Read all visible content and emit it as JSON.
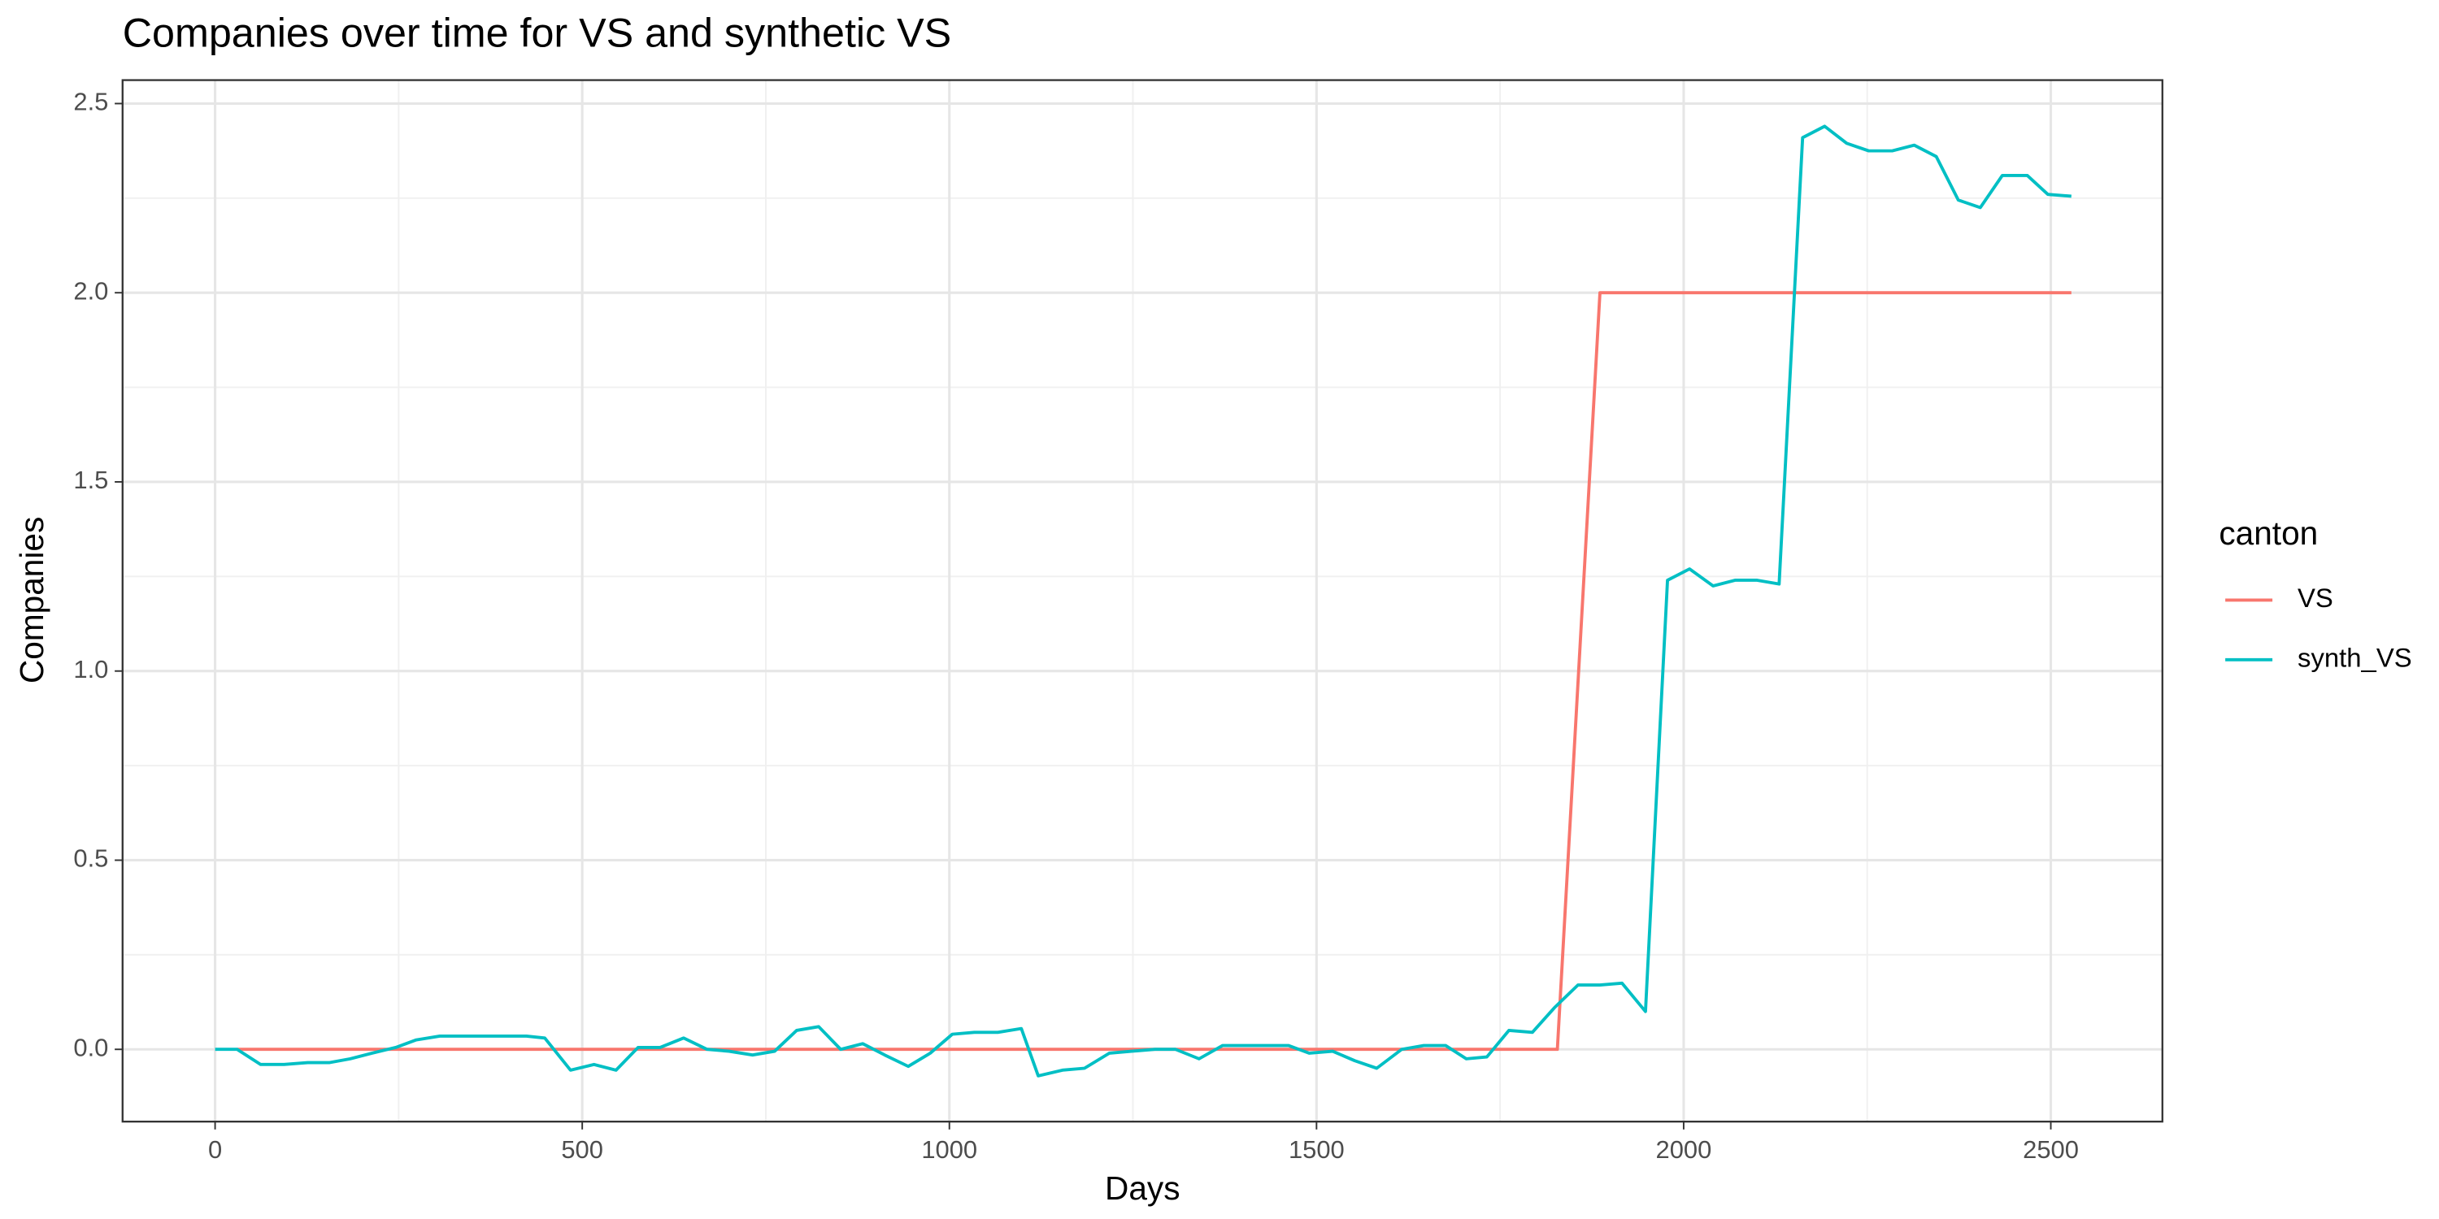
{
  "chart_data": {
    "type": "line",
    "title": "Companies over time for VS and synthetic VS",
    "x_label": "Days",
    "y_label": "Companies",
    "legend_title": "canton",
    "legend_position": "right",
    "grid": true,
    "xlim": [
      -126,
      2652
    ],
    "ylim": [
      -0.191,
      2.562
    ],
    "xticks": [
      0,
      500,
      1000,
      1500,
      2000,
      2500
    ],
    "yticks": [
      {
        "value": 0,
        "label": "0.0"
      },
      {
        "value": 0.5,
        "label": "0.5"
      },
      {
        "value": 1,
        "label": "1.0"
      },
      {
        "value": 1.5,
        "label": "1.5"
      },
      {
        "value": 2,
        "label": "2.0"
      },
      {
        "value": 2.5,
        "label": "2.5"
      }
    ],
    "x_minor_grid": [
      250,
      750,
      1250,
      1750,
      2250
    ],
    "y_minor_grid": [
      0.25,
      0.75,
      1.25,
      1.75,
      2.25
    ],
    "series": [
      {
        "name": "VS",
        "color": "#F8766D",
        "x": [
          30,
          1828,
          1886,
          2528
        ],
        "values": [
          0,
          0,
          2,
          2
        ]
      },
      {
        "name": "synth_VS",
        "color": "#00BFC4",
        "x": [
          0,
          30,
          62,
          94,
          126,
          156,
          184,
          214,
          246,
          274,
          306,
          338,
          366,
          396,
          424,
          449,
          484,
          516,
          546,
          576,
          606,
          638,
          670,
          700,
          732,
          762,
          792,
          822,
          852,
          882,
          912,
          944,
          974,
          1004,
          1034,
          1066,
          1098,
          1121,
          1154,
          1184,
          1218,
          1248,
          1280,
          1308,
          1340,
          1372,
          1402,
          1432,
          1462,
          1490,
          1522,
          1552,
          1582,
          1616,
          1646,
          1676,
          1704,
          1732,
          1762,
          1794,
          1824,
          1856,
          1886,
          1916,
          1948,
          1978,
          2008,
          2040,
          2070,
          2100,
          2130,
          2162,
          2192,
          2222,
          2252,
          2284,
          2314,
          2344,
          2374,
          2404,
          2434,
          2468,
          2496,
          2528
        ],
        "values": [
          0,
          0,
          -0.04,
          -0.04,
          -0.035,
          -0.035,
          -0.025,
          -0.01,
          0.005,
          0.025,
          0.035,
          0.035,
          0.035,
          0.035,
          0.035,
          0.03,
          -0.055,
          -0.04,
          -0.055,
          0.005,
          0.005,
          0.03,
          0,
          -0.005,
          -0.015,
          -0.005,
          0.05,
          0.06,
          0,
          0.015,
          -0.015,
          -0.045,
          -0.01,
          0.04,
          0.045,
          0.045,
          0.055,
          -0.07,
          -0.055,
          -0.05,
          -0.01,
          -0.005,
          0,
          0,
          -0.025,
          0.01,
          0.01,
          0.01,
          0.01,
          -0.01,
          -0.005,
          -0.03,
          -0.05,
          0,
          0.01,
          0.01,
          -0.025,
          -0.02,
          0.05,
          0.045,
          0.11,
          0.17,
          0.17,
          0.175,
          0.1,
          1.24,
          1.27,
          1.225,
          1.24,
          1.24,
          1.23,
          2.41,
          2.44,
          2.395,
          2.375,
          2.375,
          2.39,
          2.36,
          2.245,
          2.225,
          2.31,
          2.31,
          2.26,
          2.255
        ]
      }
    ]
  }
}
